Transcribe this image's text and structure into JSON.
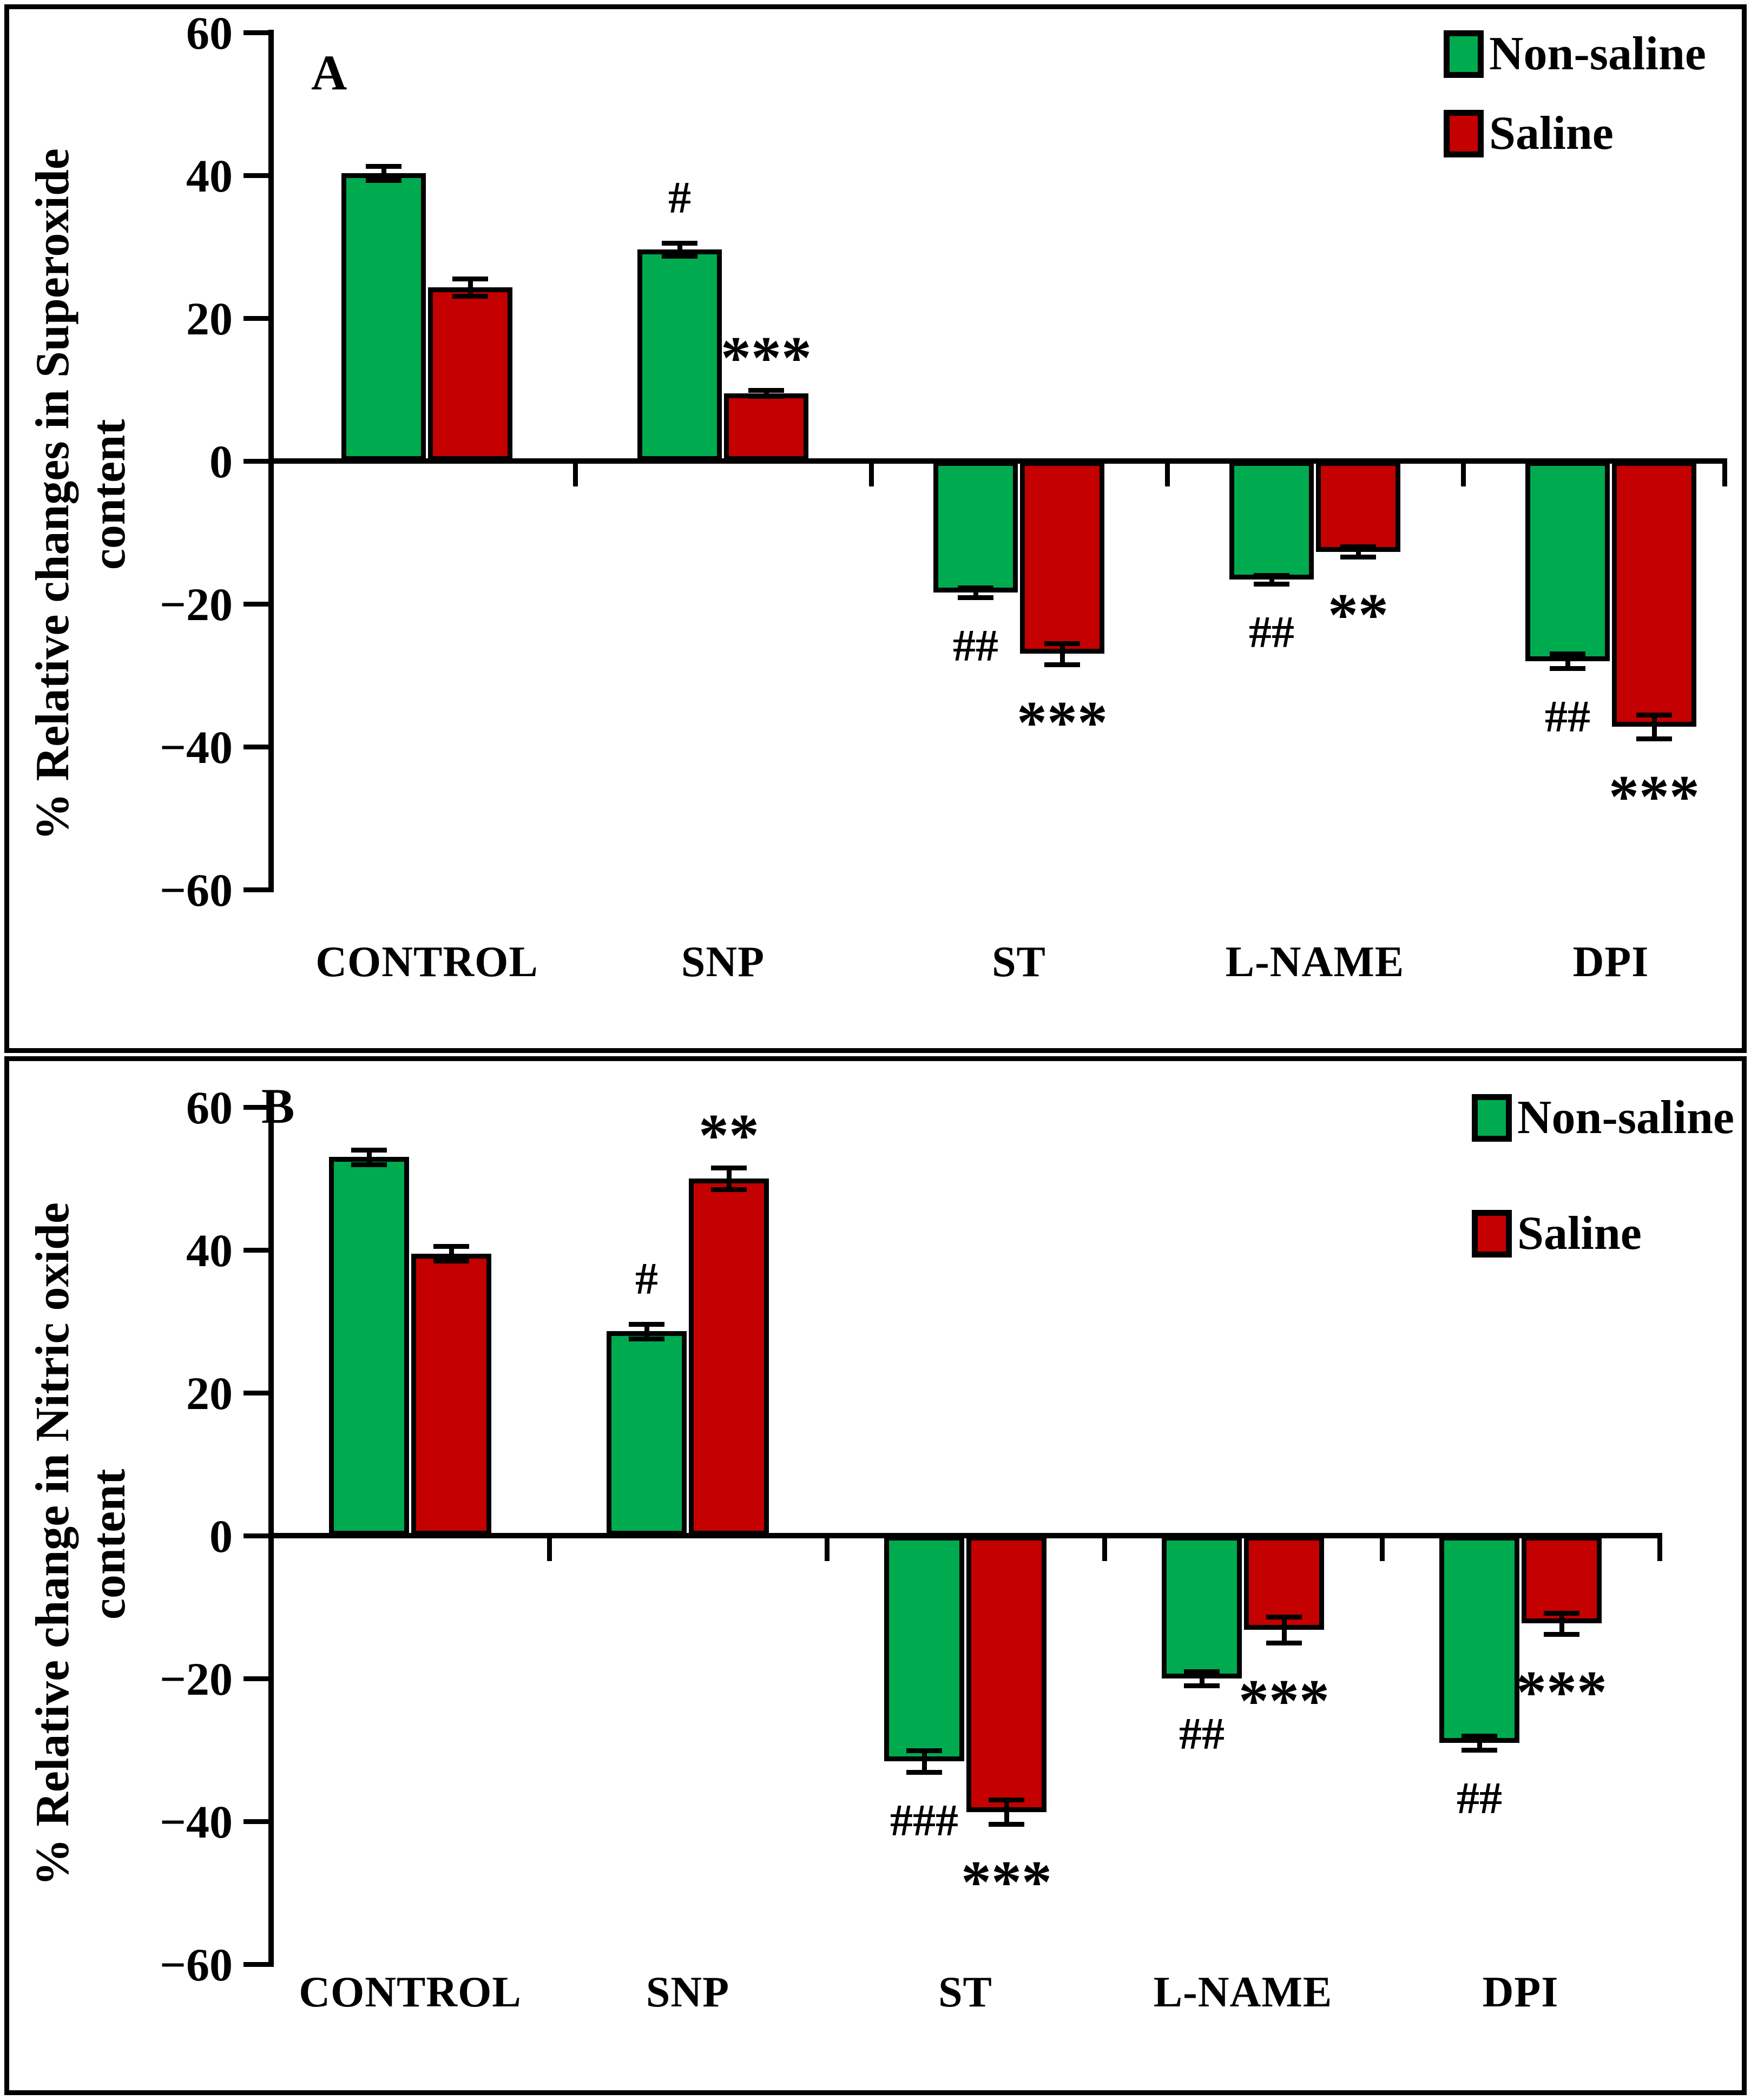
{
  "figure": {
    "background": "#ffffff",
    "bar_outline_color": "#000000",
    "series_colors": {
      "non_saline": "#00AB50",
      "saline": "#C40000"
    },
    "legend": {
      "non_saline_label": "Non-saline",
      "saline_label": "Saline"
    }
  },
  "chart_data": [
    {
      "type": "bar",
      "panel_label": "A",
      "ylabel_line1": "% Relative changes in Superoxide",
      "ylabel_line2": "content",
      "xlabel": "",
      "categories": [
        "CONTROL",
        "SNP",
        "ST",
        "L-NAME",
        "DPI"
      ],
      "ylim": [
        -60,
        60
      ],
      "yticks": [
        60,
        40,
        20,
        0,
        -20,
        -40,
        -60
      ],
      "grid": false,
      "legend_position": "top-right",
      "series": [
        {
          "name": "Non-saline",
          "color_key": "non_saline",
          "values": [
            40.3,
            29.6,
            -18.4,
            -16.6,
            -28.0
          ],
          "errors": [
            1.0,
            0.9,
            0.7,
            0.6,
            1.0
          ],
          "annotations": [
            "",
            "#",
            "##",
            "##",
            "##"
          ]
        },
        {
          "name": "Saline",
          "color_key": "saline",
          "values": [
            24.3,
            9.5,
            -27.0,
            -12.7,
            -37.2
          ],
          "errors": [
            1.2,
            0.4,
            1.5,
            0.7,
            1.7
          ],
          "annotations": [
            "",
            "***",
            "***",
            "**",
            "***"
          ]
        }
      ]
    },
    {
      "type": "bar",
      "panel_label": "B",
      "ylabel_line1": "% Relative change in Nitric oxide",
      "ylabel_line2": "content",
      "xlabel": "",
      "categories": [
        "CONTROL",
        "SNP",
        "ST",
        "L-NAME",
        "DPI"
      ],
      "ylim": [
        -60,
        60
      ],
      "yticks": [
        60,
        40,
        20,
        0,
        -20,
        -40,
        -60
      ],
      "grid": false,
      "legend_position": "top-right",
      "series": [
        {
          "name": "Non-saline",
          "color_key": "non_saline",
          "values": [
            53.0,
            28.6,
            -31.6,
            -20.0,
            -29.0
          ],
          "errors": [
            1.0,
            1.0,
            1.5,
            1.0,
            1.0
          ],
          "annotations": [
            "",
            "#",
            "###",
            "##",
            "##"
          ]
        },
        {
          "name": "Saline",
          "color_key": "saline",
          "values": [
            39.5,
            50.0,
            -38.7,
            -13.2,
            -12.3
          ],
          "errors": [
            1.0,
            1.5,
            1.7,
            1.8,
            1.5
          ],
          "annotations": [
            "",
            "**",
            "***",
            "***",
            "***"
          ]
        }
      ]
    }
  ]
}
